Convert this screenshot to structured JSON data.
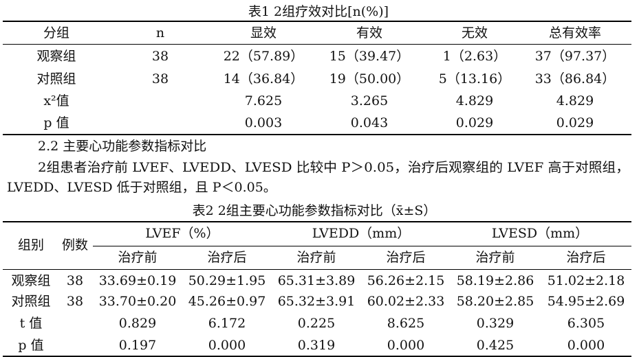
{
  "table1": {
    "title": "表1  2组疗效对比[n(%)]",
    "header": [
      "分组",
      "n",
      "显效",
      "有效",
      "无效",
      "总有效率"
    ],
    "rows": [
      [
        "观察组",
        "38",
        "22（57.89）",
        "15（39.47）",
        "1（2.63）",
        "37（97.37）"
      ],
      [
        "对照组",
        "38",
        "14（36.84）",
        "19（50.00）",
        "5（13.16）",
        "33（86.84）"
      ],
      [
        "x²值",
        null,
        "7.625",
        "3.265",
        "4.829",
        "4.829"
      ],
      [
        "p 值",
        null,
        "0.003",
        "0.043",
        "0.029",
        "0.029"
      ]
    ]
  },
  "section": {
    "heading": "2.2 主要心功能参数指标对比",
    "lines": [
      "2组患者治疗前 LVEF、LVEDD、LVESD 比较中 P＞0.05，治疗后观察组的 LVEF 高于对照组，",
      "LVEDD、LVESD 低于对照组，且 P＜0.05。"
    ]
  },
  "table2": {
    "title": "表2  2组主要心功能参数指标对比（x̄±S）",
    "row_headers": [
      "组别",
      "例数"
    ],
    "metrics": [
      "LVEF（%）",
      "LVEDD（mm）",
      "LVESD（mm）"
    ],
    "subheaders": [
      "治疗前",
      "治疗后",
      "治疗前",
      "治疗后",
      "治疗前",
      "治疗后"
    ],
    "rows": [
      [
        "观察组",
        "38",
        "33.69±0.19",
        "50.29±1.95",
        "65.31±3.89",
        "56.26±2.15",
        "58.19±2.86",
        "51.02±2.18"
      ],
      [
        "对照组",
        "38",
        "33.70±0.20",
        "45.26±0.97",
        "65.32±3.91",
        "60.02±2.33",
        "58.20±2.85",
        "54.95±2.69"
      ],
      [
        "t 值",
        null,
        "0.829",
        "6.172",
        "0.225",
        "8.625",
        "0.329",
        "6.305"
      ],
      [
        "p 值",
        null,
        "0.197",
        "0.000",
        "0.319",
        "0.000",
        "0.425",
        "0.000"
      ]
    ]
  }
}
